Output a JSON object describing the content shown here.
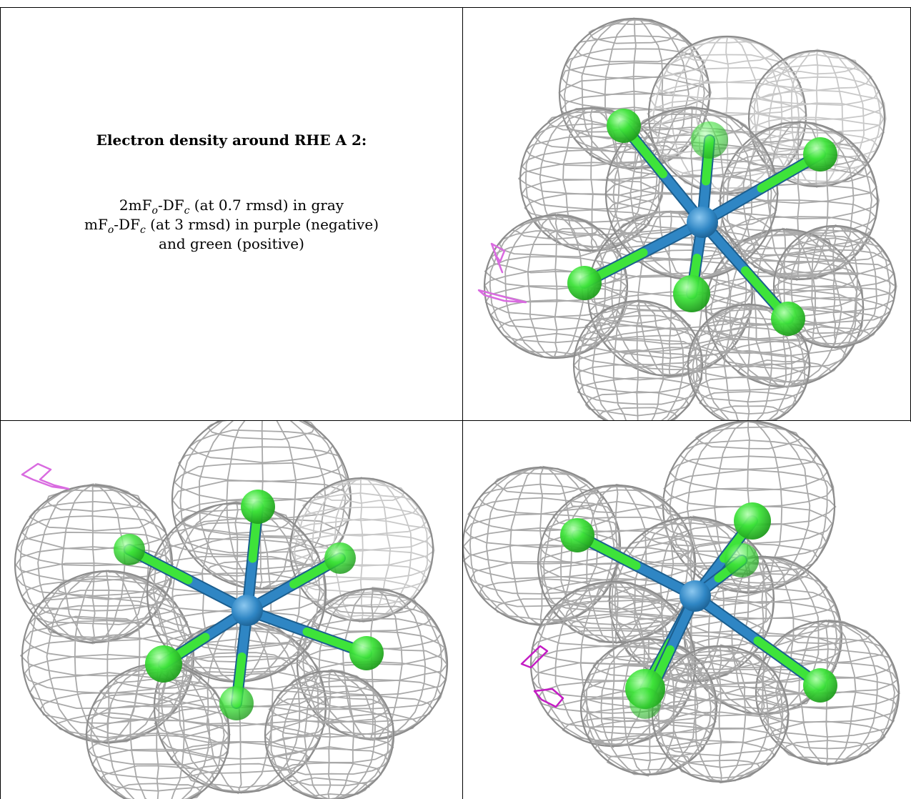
{
  "caption": {
    "title": "Electron density around RHE A 2:",
    "line1": {
      "a": "2mF",
      "sub1": "o",
      "b": "-DF",
      "sub2": "c",
      "c": " (at 0.7 rmsd) in gray"
    },
    "line2": {
      "a": "mF",
      "sub1": "o",
      "b": "-DF",
      "sub2": "c",
      "c": " (at 3 rmsd) in purple (negative)"
    },
    "line3": "and green (positive)"
  },
  "colors": {
    "mesh_gray": "#a9a9a9",
    "bond_blue": "#2f86c4",
    "atom_green": "#3ee33a",
    "difference_purple": "#d96be0",
    "difference_magenta": "#c41cc4"
  },
  "views": [
    {
      "name": "view-top-right",
      "content": "electron density mesh with hexachloro rhenium ligand"
    },
    {
      "name": "view-bottom-left",
      "content": "electron density mesh with hexachloro rhenium ligand"
    },
    {
      "name": "view-bottom-right",
      "content": "electron density mesh with hexachloro rhenium ligand"
    }
  ]
}
